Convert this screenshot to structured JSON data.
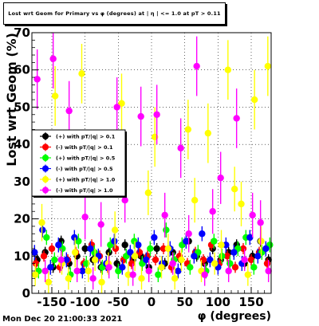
{
  "title": "Lost wrt Geom for Primary vs φ (degrees) at | η | <= 1.0 at pT > 0.11",
  "footer": "Mon Dec 20 21:00:33 2021",
  "chart_data": {
    "type": "scatter",
    "title": "Lost wrt Geom for Primary vs φ (degrees) at | η | <= 1.0 at pT > 0.11",
    "xlabel": "φ (degrees)",
    "ylabel": "Lost wrt Geom (%)",
    "xlim": [
      -180,
      180
    ],
    "ylim": [
      0,
      70
    ],
    "xticks": [
      -150,
      -100,
      -50,
      0,
      50,
      100,
      150
    ],
    "yticks": [
      0,
      10,
      20,
      30,
      40,
      50,
      60,
      70
    ],
    "grid": true,
    "legend_position": "left-middle",
    "series": [
      {
        "name": "(+) with pT/|q| > 0.1",
        "color": "#000000",
        "x": [
          -172,
          -160,
          -148,
          -136,
          -124,
          -112,
          -100,
          -88,
          -76,
          -64,
          -52,
          -40,
          -28,
          -16,
          -4,
          8,
          20,
          32,
          44,
          56,
          68,
          80,
          92,
          104,
          116,
          128,
          140,
          152,
          164,
          176
        ],
        "y": [
          9,
          11,
          7,
          14,
          8,
          10,
          12,
          9,
          7,
          11,
          8,
          13,
          9,
          10,
          7,
          12,
          8,
          11,
          9,
          14,
          10,
          8,
          12,
          9,
          11,
          13,
          8,
          10,
          14,
          9
        ],
        "err": [
          1.5,
          1.5,
          1.5,
          1.5,
          1.5,
          1.5,
          1.5,
          1.5,
          1.5,
          1.5,
          1.5,
          1.5,
          1.5,
          1.5,
          1.5,
          1.5,
          1.5,
          1.5,
          1.5,
          1.5,
          1.5,
          1.5,
          1.5,
          1.5,
          1.5,
          1.5,
          1.5,
          1.5,
          1.5,
          1.5
        ]
      },
      {
        "name": "(-) with pT/|q| > 0.1",
        "color": "#ff0000",
        "x": [
          -174,
          -162,
          -150,
          -138,
          -126,
          -114,
          -102,
          -90,
          -78,
          -66,
          -54,
          -42,
          -30,
          -18,
          -6,
          6,
          18,
          30,
          42,
          54,
          66,
          78,
          90,
          102,
          114,
          126,
          138,
          150,
          162,
          174
        ],
        "y": [
          8,
          10,
          12,
          7,
          9,
          11,
          8,
          13,
          10,
          7,
          12,
          9,
          8,
          11,
          10,
          9,
          12,
          7,
          10,
          8,
          11,
          9,
          13,
          8,
          10,
          7,
          12,
          9,
          11,
          8
        ],
        "err": [
          1.5,
          1.5,
          1.5,
          1.5,
          1.5,
          1.5,
          1.5,
          1.5,
          1.5,
          1.5,
          1.5,
          1.5,
          1.5,
          1.5,
          1.5,
          1.5,
          1.5,
          1.5,
          1.5,
          1.5,
          1.5,
          1.5,
          1.5,
          1.5,
          1.5,
          1.5,
          1.5,
          1.5,
          1.5,
          1.5
        ]
      },
      {
        "name": "(+) with pT/|q| > 0.5",
        "color": "#00ff00",
        "x": [
          -170,
          -158,
          -146,
          -134,
          -122,
          -110,
          -98,
          -86,
          -74,
          -62,
          -50,
          -38,
          -26,
          -14,
          -2,
          10,
          22,
          34,
          46,
          58,
          70,
          82,
          94,
          106,
          118,
          130,
          142,
          154,
          166,
          178
        ],
        "y": [
          6,
          15,
          9,
          12,
          5,
          14,
          8,
          11,
          7,
          13,
          6,
          10,
          14,
          8,
          12,
          5,
          17,
          9,
          13,
          7,
          11,
          6,
          14,
          10,
          8,
          12,
          15,
          7,
          11,
          13
        ],
        "err": [
          2,
          2,
          2,
          2,
          2,
          2,
          2,
          2,
          2,
          2,
          2,
          2,
          2,
          2,
          2,
          2,
          2,
          2,
          2,
          2,
          2,
          2,
          2,
          2,
          2,
          2,
          2,
          2,
          2,
          2
        ]
      },
      {
        "name": "(-) with pT/|q| > 0.5",
        "color": "#0000ff",
        "x": [
          -176,
          -164,
          -152,
          -140,
          -128,
          -116,
          -104,
          -92,
          -80,
          -68,
          -56,
          -44,
          -32,
          -20,
          -8,
          4,
          16,
          28,
          40,
          52,
          64,
          76,
          88,
          100,
          112,
          124,
          136,
          148,
          160,
          172
        ],
        "y": [
          11,
          17,
          7,
          13,
          9,
          15,
          6,
          12,
          10,
          8,
          14,
          7,
          11,
          13,
          9,
          15,
          8,
          12,
          6,
          14,
          10,
          16,
          9,
          7,
          13,
          11,
          8,
          15,
          10,
          12
        ],
        "err": [
          2,
          2,
          2,
          2,
          2,
          2,
          2,
          2,
          2,
          2,
          2,
          2,
          2,
          2,
          2,
          2,
          2,
          2,
          2,
          2,
          2,
          2,
          2,
          2,
          2,
          2,
          2,
          2,
          2,
          2
        ]
      },
      {
        "name": "(+) with pT/|q| > 1.0",
        "color": "#ffff00",
        "x": [
          -175,
          -165,
          -155,
          -145,
          -135,
          -125,
          -115,
          -105,
          -95,
          -85,
          -75,
          -65,
          -55,
          -45,
          -35,
          -25,
          -15,
          -5,
          5,
          15,
          25,
          35,
          45,
          55,
          65,
          75,
          85,
          95,
          105,
          115,
          125,
          135,
          145,
          155,
          165,
          175
        ],
        "y": [
          5,
          19,
          3,
          53,
          8,
          4,
          11,
          59,
          6,
          9,
          3,
          8,
          17,
          51,
          5,
          10,
          4,
          27,
          42,
          7,
          12,
          4,
          9,
          44,
          25,
          6,
          43,
          8,
          13,
          60,
          28,
          24,
          5,
          52,
          14,
          61
        ],
        "err": [
          3,
          5,
          3,
          8,
          3,
          3,
          4,
          8,
          3,
          3,
          3,
          3,
          5,
          8,
          3,
          4,
          3,
          6,
          8,
          3,
          4,
          3,
          3,
          8,
          6,
          3,
          8,
          3,
          4,
          8,
          6,
          6,
          3,
          8,
          4,
          8
        ]
      },
      {
        "name": "(-) with pT/|q| > 1.0",
        "color": "#ff00ff",
        "x": [
          -172,
          -160,
          -148,
          -136,
          -124,
          -112,
          -100,
          -88,
          -76,
          -64,
          -52,
          -40,
          -28,
          -16,
          -4,
          8,
          20,
          32,
          44,
          56,
          68,
          80,
          92,
          104,
          116,
          128,
          140,
          152,
          164,
          176
        ],
        "y": [
          57.5,
          6,
          63,
          9,
          49,
          6,
          20.5,
          4,
          18.5,
          7,
          50,
          25,
          5,
          47.5,
          6,
          48,
          21,
          8,
          39,
          16,
          61,
          5,
          22,
          31,
          6,
          47,
          9,
          21,
          19,
          6
        ],
        "err": [
          8,
          3,
          8,
          3,
          8,
          3,
          6,
          3,
          6,
          3,
          8,
          6,
          3,
          8,
          3,
          8,
          6,
          3,
          8,
          5,
          8,
          3,
          6,
          7,
          3,
          8,
          3,
          6,
          6,
          3
        ]
      }
    ]
  }
}
